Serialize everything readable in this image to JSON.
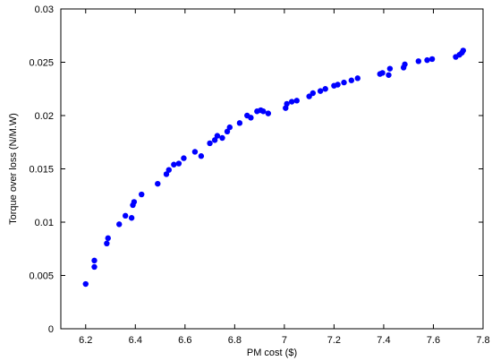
{
  "chart_data": {
    "type": "scatter",
    "title": "",
    "xlabel": "PM cost ($)",
    "ylabel": "Torque over loss (N/M.W)",
    "xlim": [
      6.1,
      7.8
    ],
    "ylim": [
      0,
      0.03
    ],
    "xticks": [
      "6.2",
      "6.4",
      "6.6",
      "6.8",
      "7",
      "7.2",
      "7.4",
      "7.6",
      "7.8"
    ],
    "yticks": [
      "0",
      "0.005",
      "0.01",
      "0.015",
      "0.02",
      "0.025",
      "0.03"
    ],
    "grid": false,
    "legend": "none",
    "marker_color": "#0000ff",
    "series": [
      {
        "x": [
          6.2,
          6.235,
          6.235,
          6.285,
          6.29,
          6.335,
          6.36,
          6.385,
          6.39,
          6.395,
          6.425,
          6.49,
          6.525,
          6.535,
          6.555,
          6.575,
          6.595,
          6.64,
          6.665,
          6.7,
          6.72,
          6.73,
          6.75,
          6.77,
          6.78,
          6.82,
          6.85,
          6.865,
          6.89,
          6.905,
          6.915,
          6.935,
          7.005,
          7.01,
          7.03,
          7.05,
          7.1,
          7.115,
          7.145,
          7.165,
          7.2,
          7.215,
          7.24,
          7.27,
          7.295,
          7.385,
          7.395,
          7.42,
          7.425,
          7.48,
          7.485,
          7.54,
          7.575,
          7.595,
          7.69,
          7.705,
          7.715,
          7.72
        ],
        "y": [
          0.0042,
          0.0058,
          0.0064,
          0.008,
          0.0085,
          0.0098,
          0.0106,
          0.0104,
          0.0116,
          0.0119,
          0.0126,
          0.0136,
          0.0145,
          0.0149,
          0.0154,
          0.0155,
          0.016,
          0.0166,
          0.0162,
          0.0174,
          0.0177,
          0.0181,
          0.0179,
          0.0185,
          0.0189,
          0.0193,
          0.02,
          0.0198,
          0.0204,
          0.0205,
          0.0204,
          0.0202,
          0.0207,
          0.0211,
          0.0213,
          0.0214,
          0.0218,
          0.0221,
          0.0223,
          0.0225,
          0.0228,
          0.0229,
          0.0231,
          0.0233,
          0.0235,
          0.0239,
          0.024,
          0.0238,
          0.0244,
          0.0245,
          0.0248,
          0.0251,
          0.0252,
          0.0253,
          0.0255,
          0.0257,
          0.0259,
          0.0261
        ]
      }
    ]
  }
}
